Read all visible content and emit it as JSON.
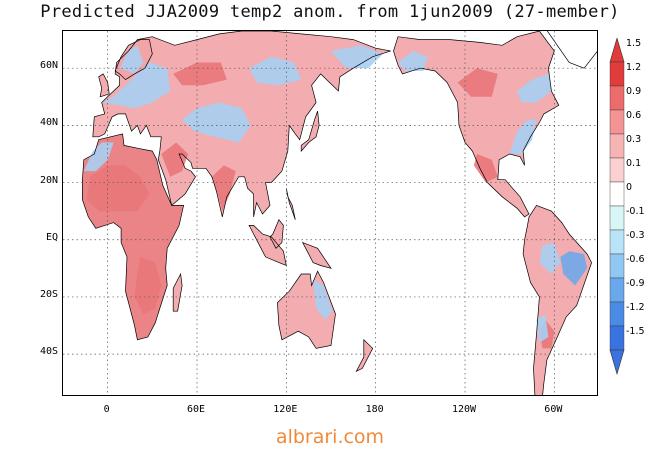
{
  "title": "Predicted JJA2009 temp2 anom. from 1jun2009 (27-member)",
  "watermark": "albrari.com",
  "axes": {
    "lat_labels": [
      "60N",
      "40N",
      "20N",
      "EQ",
      "20S",
      "40S"
    ],
    "lon_labels": [
      "0",
      "60E",
      "120E",
      "180",
      "120W",
      "60W"
    ],
    "lat_values": [
      60,
      40,
      20,
      0,
      -20,
      -40
    ],
    "lon_values": [
      0,
      60,
      120,
      180,
      240,
      300
    ],
    "lon_range": [
      -30,
      330
    ],
    "lat_range": [
      -55,
      73
    ],
    "grid": "dotted"
  },
  "colorbar": {
    "labels": [
      "1.5",
      "1.2",
      "0.9",
      "0.6",
      "0.3",
      "0.1",
      "0",
      "-0.1",
      "-0.3",
      "-0.6",
      "-0.9",
      "-1.2",
      "-1.5"
    ],
    "colors": [
      "#e03c3c",
      "#ec6b6b",
      "#f39393",
      "#f7b4b4",
      "#fbd0d0",
      "#fde6e6",
      "#ffffff",
      "#d8f6f6",
      "#b9e3f7",
      "#90c8f2",
      "#6aa8ec",
      "#4a8be6",
      "#3a72e0"
    ]
  },
  "colors": {
    "land_warm": "#f2a3a6",
    "land_hot": "#e9777a",
    "land_cool": "#a9cff3",
    "land_cold": "#6fa9ea",
    "coast": "#000000"
  }
}
